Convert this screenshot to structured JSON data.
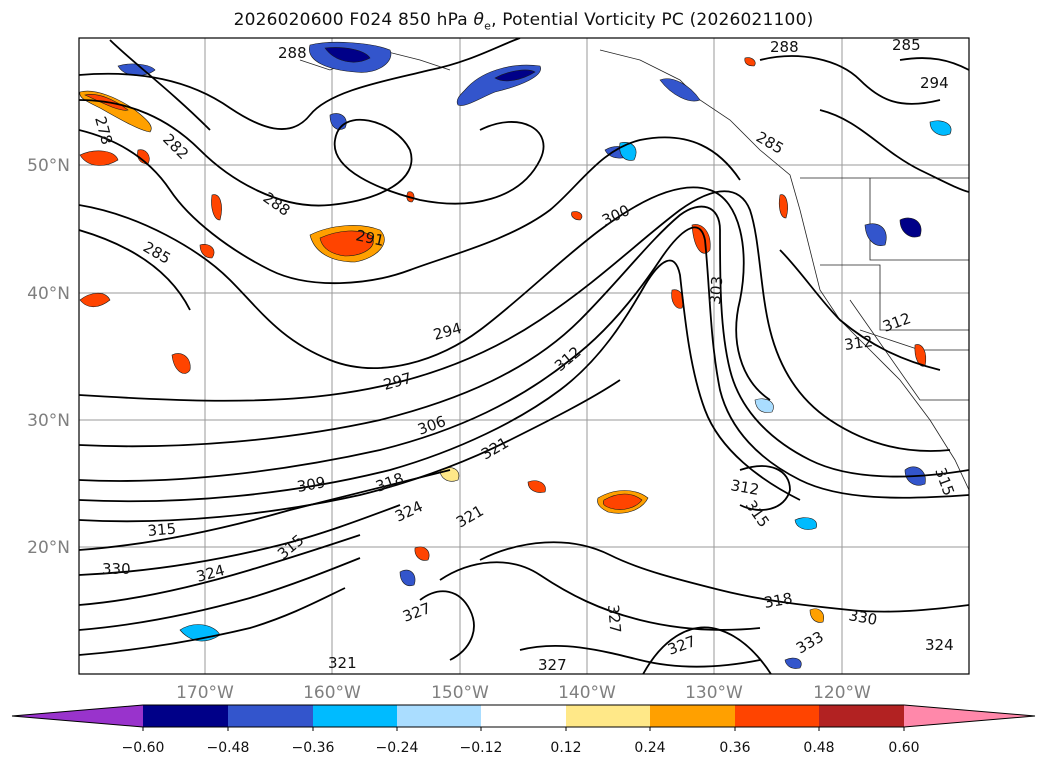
{
  "title": {
    "prefix": "2026020600 F024 850 hPa ",
    "theta": "θ",
    "theta_sub": "e",
    "suffix": ", Potential Vorticity PC (2026021100)"
  },
  "lat_labels": [
    "50°N",
    "40°N",
    "30°N",
    "20°N"
  ],
  "lon_labels": [
    "170°W",
    "160°W",
    "150°W",
    "140°W",
    "130°W",
    "120°W"
  ],
  "contour_labels": [
    "288",
    "288",
    "282",
    "278",
    "288",
    "285",
    "291",
    "294",
    "297",
    "300",
    "303",
    "306",
    "309",
    "312",
    "312",
    "312",
    "315",
    "315",
    "318",
    "321",
    "321",
    "324",
    "324",
    "327",
    "327",
    "327",
    "330",
    "330",
    "333",
    "294",
    "285",
    "285",
    "312",
    "321",
    "315",
    "324",
    "315",
    "318",
    "327"
  ],
  "colorbar": {
    "ticks": [
      "−0.60",
      "−0.48",
      "−0.36",
      "−0.24",
      "−0.12",
      "0.12",
      "0.24",
      "0.36",
      "0.48",
      "0.60"
    ],
    "colors": [
      "#9933cc",
      "#000088",
      "#3355cc",
      "#00bbff",
      "#aaddff",
      "#ffffff",
      "#ffe888",
      "#ffa000",
      "#ff4400",
      "#b22222",
      "#ff88aa"
    ]
  }
}
